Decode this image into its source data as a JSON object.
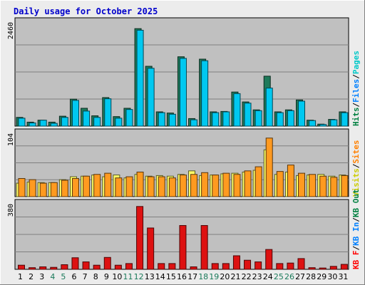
{
  "chart_data": [
    {
      "type": "bar",
      "title": "Daily usage for October 2025",
      "panel": "top",
      "ymax_label": "2460",
      "ylim": [
        0,
        2460
      ],
      "categories": [
        "1",
        "2",
        "3",
        "4",
        "5",
        "6",
        "7",
        "8",
        "9",
        "10",
        "11",
        "12",
        "13",
        "14",
        "15",
        "16",
        "17",
        "18",
        "19",
        "20",
        "21",
        "22",
        "23",
        "24",
        "25",
        "26",
        "27",
        "28",
        "29",
        "30",
        "31"
      ],
      "legend": [
        {
          "label": "Hits",
          "color": "#008040"
        },
        {
          "label": "/",
          "color": "#000000"
        },
        {
          "label": "Files",
          "color": "#0080ff"
        },
        {
          "label": "/",
          "color": "#000000"
        },
        {
          "label": "Pages",
          "color": "#00c8c8"
        }
      ],
      "series": [
        {
          "name": "Hits",
          "color": "#1f7a5a",
          "values": [
            220,
            100,
            150,
            100,
            250,
            680,
            450,
            260,
            720,
            240,
            450,
            2460,
            1510,
            360,
            330,
            1750,
            190,
            1690,
            360,
            370,
            860,
            610,
            410,
            1260,
            360,
            410,
            660,
            150,
            50,
            170,
            360
          ]
        },
        {
          "name": "Files",
          "color": "#00c8f0",
          "values": [
            200,
            80,
            150,
            70,
            220,
            650,
            380,
            220,
            690,
            200,
            420,
            2420,
            1460,
            340,
            300,
            1710,
            160,
            1650,
            340,
            360,
            820,
            580,
            390,
            960,
            340,
            390,
            630,
            140,
            40,
            160,
            340
          ]
        }
      ]
    },
    {
      "type": "bar",
      "panel": "middle",
      "ymax_label": "104",
      "ylim": [
        0,
        104
      ],
      "categories": [
        "1",
        "2",
        "3",
        "4",
        "5",
        "6",
        "7",
        "8",
        "9",
        "10",
        "11",
        "12",
        "13",
        "14",
        "15",
        "16",
        "17",
        "18",
        "19",
        "20",
        "21",
        "22",
        "23",
        "24",
        "25",
        "26",
        "27",
        "28",
        "29",
        "30",
        "31"
      ],
      "legend": [
        {
          "label": "Visits",
          "color": "#cccc00"
        },
        {
          "label": "/",
          "color": "#000000"
        },
        {
          "label": "Sites",
          "color": "#ff8000"
        }
      ],
      "series": [
        {
          "name": "Visits",
          "color": "#ffff66",
          "values": [
            23,
            25,
            24,
            24,
            29,
            34,
            35,
            37,
            34,
            37,
            32,
            38,
            35,
            36,
            35,
            38,
            44,
            36,
            37,
            39,
            40,
            42,
            45,
            80,
            38,
            42,
            36,
            37,
            38,
            35,
            37
          ]
        },
        {
          "name": "Sites",
          "color": "#ff9a20",
          "values": [
            31,
            29,
            23,
            24,
            28,
            31,
            35,
            38,
            40,
            32,
            34,
            42,
            34,
            34,
            32,
            37,
            38,
            41,
            37,
            40,
            38,
            44,
            51,
            100,
            43,
            54,
            40,
            38,
            35,
            33,
            36
          ]
        }
      ]
    },
    {
      "type": "bar",
      "panel": "bottom",
      "ymax_label": "380",
      "ylim": [
        0,
        380
      ],
      "categories": [
        "1",
        "2",
        "3",
        "4",
        "5",
        "6",
        "7",
        "8",
        "9",
        "10",
        "11",
        "12",
        "13",
        "14",
        "15",
        "16",
        "17",
        "18",
        "19",
        "20",
        "21",
        "22",
        "23",
        "24",
        "25",
        "26",
        "27",
        "28",
        "29",
        "30",
        "31"
      ],
      "legend": [
        {
          "label": "KB F",
          "color": "#ff0000"
        },
        {
          "label": "/",
          "color": "#000000"
        },
        {
          "label": "KB In",
          "color": "#0080ff"
        },
        {
          "label": "/",
          "color": "#000000"
        },
        {
          "label": "KB Out",
          "color": "#008040"
        }
      ],
      "series": [
        {
          "name": "KB F",
          "color": "#dd1111",
          "values": [
            25,
            10,
            15,
            12,
            28,
            70,
            45,
            25,
            72,
            25,
            35,
            380,
            250,
            35,
            35,
            265,
            15,
            265,
            35,
            35,
            82,
            55,
            45,
            120,
            35,
            38,
            65,
            10,
            8,
            18,
            30
          ]
        }
      ]
    }
  ],
  "x_labels": [
    {
      "text": "1",
      "color": "#000000"
    },
    {
      "text": "2",
      "color": "#000000"
    },
    {
      "text": "3",
      "color": "#000000"
    },
    {
      "text": "4",
      "color": "#1a7a5a"
    },
    {
      "text": "5",
      "color": "#1a7a5a"
    },
    {
      "text": "6",
      "color": "#000000"
    },
    {
      "text": "7",
      "color": "#000000"
    },
    {
      "text": "8",
      "color": "#000000"
    },
    {
      "text": "9",
      "color": "#000000"
    },
    {
      "text": "10",
      "color": "#000000"
    },
    {
      "text": "11",
      "color": "#1a7a5a"
    },
    {
      "text": "12",
      "color": "#1a7a5a"
    },
    {
      "text": "13",
      "color": "#000000"
    },
    {
      "text": "14",
      "color": "#000000"
    },
    {
      "text": "15",
      "color": "#000000"
    },
    {
      "text": "16",
      "color": "#000000"
    },
    {
      "text": "17",
      "color": "#000000"
    },
    {
      "text": "18",
      "color": "#1a7a5a"
    },
    {
      "text": "19",
      "color": "#1a7a5a"
    },
    {
      "text": "20",
      "color": "#000000"
    },
    {
      "text": "21",
      "color": "#000000"
    },
    {
      "text": "22",
      "color": "#000000"
    },
    {
      "text": "23",
      "color": "#000000"
    },
    {
      "text": "24",
      "color": "#000000"
    },
    {
      "text": "25",
      "color": "#1a7a5a"
    },
    {
      "text": "26",
      "color": "#1a7a5a"
    },
    {
      "text": "27",
      "color": "#000000"
    },
    {
      "text": "28",
      "color": "#000000"
    },
    {
      "text": "29",
      "color": "#000000"
    },
    {
      "text": "30",
      "color": "#000000"
    },
    {
      "text": "31",
      "color": "#000000"
    }
  ],
  "colors": {
    "frame_bg": "#ececec",
    "panel_bg": "#c0c0c0",
    "grid": "#808080"
  }
}
